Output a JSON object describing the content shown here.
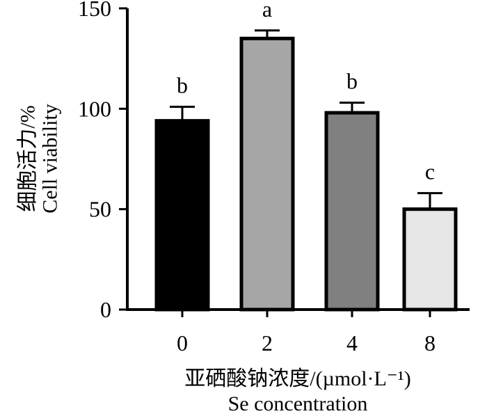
{
  "chart_data": {
    "type": "bar",
    "categories": [
      "0",
      "2",
      "4",
      "8"
    ],
    "values": [
      94,
      135,
      98,
      50
    ],
    "errors": [
      7,
      4,
      5,
      8
    ],
    "significance": [
      "b",
      "a",
      "b",
      "c"
    ],
    "bar_colors": [
      "#000000",
      "#a6a6a6",
      "#808080",
      "#e6e6e6"
    ],
    "ylim": [
      0,
      150
    ],
    "yticks": [
      "0",
      "50",
      "100",
      "150"
    ],
    "ylabel_cn": "细胞活力/%",
    "ylabel_en": "Cell viability",
    "xlabel_cn": "亚硒酸钠浓度/(µmol·L⁻¹)",
    "xlabel_en": "Se concentration",
    "grid": false,
    "legend": "none"
  }
}
